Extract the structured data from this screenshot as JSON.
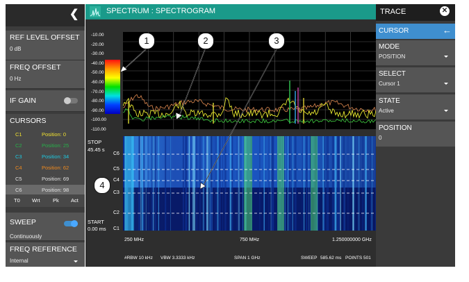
{
  "header": {
    "title": "SPECTRUM : SPECTROGRAM",
    "back_icon": "chevron-left-icon",
    "app_icon": "spectrum-icon"
  },
  "left": {
    "ref_level_offset": {
      "label": "REF LEVEL OFFSET",
      "value": "0 dB"
    },
    "freq_offset": {
      "label": "FREQ OFFSET",
      "value": "0 Hz"
    },
    "if_gain": {
      "label": "IF GAIN",
      "on": false
    },
    "cursors": {
      "label": "CURSORS",
      "items": [
        {
          "name": "C1",
          "position": "Position: 0",
          "color": "#f0e030"
        },
        {
          "name": "C2",
          "position": "Position: 25",
          "color": "#27b04a"
        },
        {
          "name": "C3",
          "position": "Position: 34",
          "color": "#1ec8e0"
        },
        {
          "name": "C4",
          "position": "Position: 62",
          "color": "#f08a1e"
        },
        {
          "name": "C5",
          "position": "Position: 69",
          "color": "#e0e0e0"
        },
        {
          "name": "C6",
          "position": "Position: 98",
          "color": "#e0e0e0"
        }
      ],
      "buttons": [
        "T0",
        "Wrt",
        "Pk",
        "Act"
      ]
    },
    "sweep": {
      "label": "SWEEP",
      "value": "Continuously",
      "on": true
    },
    "freq_reference": {
      "label": "FREQ REFERENCE",
      "value": "Internal"
    }
  },
  "right": {
    "title": "TRACE",
    "close_icon": "close-icon",
    "cursor": {
      "label": "CURSOR",
      "back_icon": "arrow-left-icon"
    },
    "mode": {
      "label": "MODE",
      "value": "POSITION"
    },
    "select": {
      "label": "SELECT",
      "value": "Cursor 1"
    },
    "state": {
      "label": "STATE",
      "value": "Active"
    },
    "position": {
      "label": "POSITION",
      "value": "0"
    }
  },
  "plot": {
    "y_ticks": [
      "-10.00",
      "-20.00",
      "-30.00",
      "-40.00",
      "-50.00",
      "-60.00",
      "-70.00",
      "-80.00",
      "-90.00",
      "-100.00",
      "-110.00"
    ],
    "stop_label": "STOP",
    "stop_time": "45.45 s",
    "start_label": "START",
    "start_time": "0.00 ms",
    "cursor_labels": [
      "C6",
      "C5",
      "C4",
      "C3",
      "C2",
      "C1"
    ],
    "x_ticks": [
      "250 MHz",
      "750 MHz",
      "1.250000000 GHz"
    ],
    "footer": {
      "rbw": "#RBW 10 kHz",
      "vbw": "VBW 3.3333 kHz",
      "span": "SPAN 1 GHz",
      "sweep": "SWEEP",
      "sweep_time": "585.62 ms",
      "points": "POINTS 501"
    }
  },
  "callouts": [
    "1",
    "2",
    "3",
    "4"
  ]
}
